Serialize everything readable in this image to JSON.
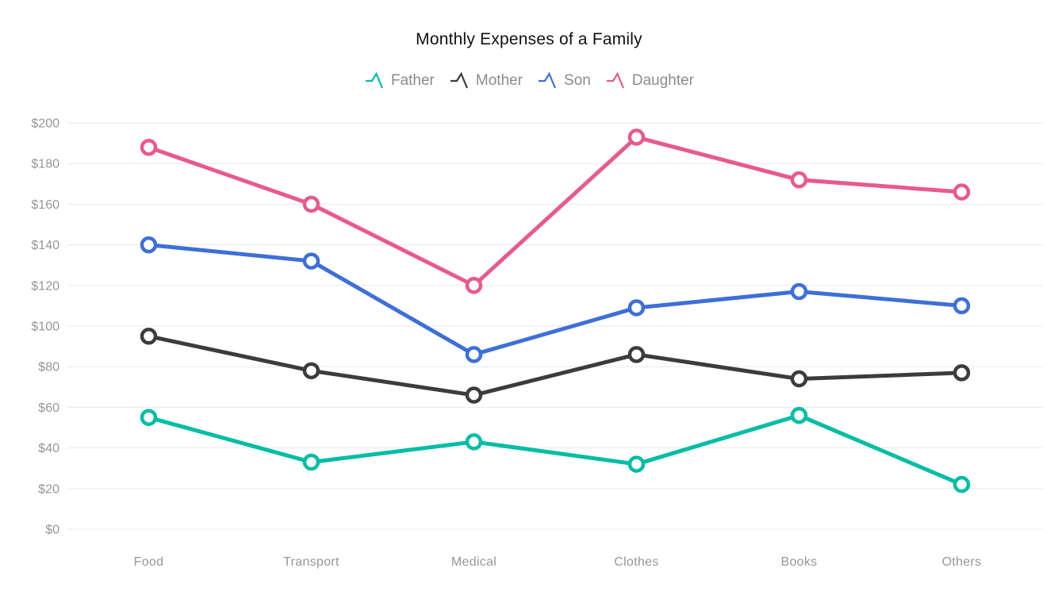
{
  "title": "Monthly Expenses of a Family",
  "chart_data": {
    "type": "line",
    "categories": [
      "Food",
      "Transport",
      "Medical",
      "Clothes",
      "Books",
      "Others"
    ],
    "series": [
      {
        "name": "Father",
        "color": "#00bda4",
        "values": [
          55,
          33,
          43,
          32,
          56,
          22
        ]
      },
      {
        "name": "Mother",
        "color": "#3c3c3c",
        "values": [
          95,
          78,
          66,
          86,
          74,
          77
        ]
      },
      {
        "name": "Son",
        "color": "#3e6fd8",
        "values": [
          140,
          132,
          86,
          109,
          117,
          110
        ]
      },
      {
        "name": "Daughter",
        "color": "#e75a8e",
        "values": [
          188,
          160,
          120,
          193,
          172,
          166
        ]
      }
    ],
    "title": "Monthly Expenses of a Family",
    "xlabel": "",
    "ylabel": "",
    "ylim": [
      0,
      200
    ],
    "ytick_step": 20,
    "ytick_labels": [
      "$0",
      "$20",
      "$40",
      "$60",
      "$80",
      "$100",
      "$120",
      "$140",
      "$160",
      "$180",
      "$200"
    ],
    "legend_position": "top",
    "grid": "horizontal",
    "grid_color": "#e8e8ea",
    "axis_label_color": "#96969b",
    "marker_fill": "#ffffff",
    "background": "#ffffff"
  }
}
